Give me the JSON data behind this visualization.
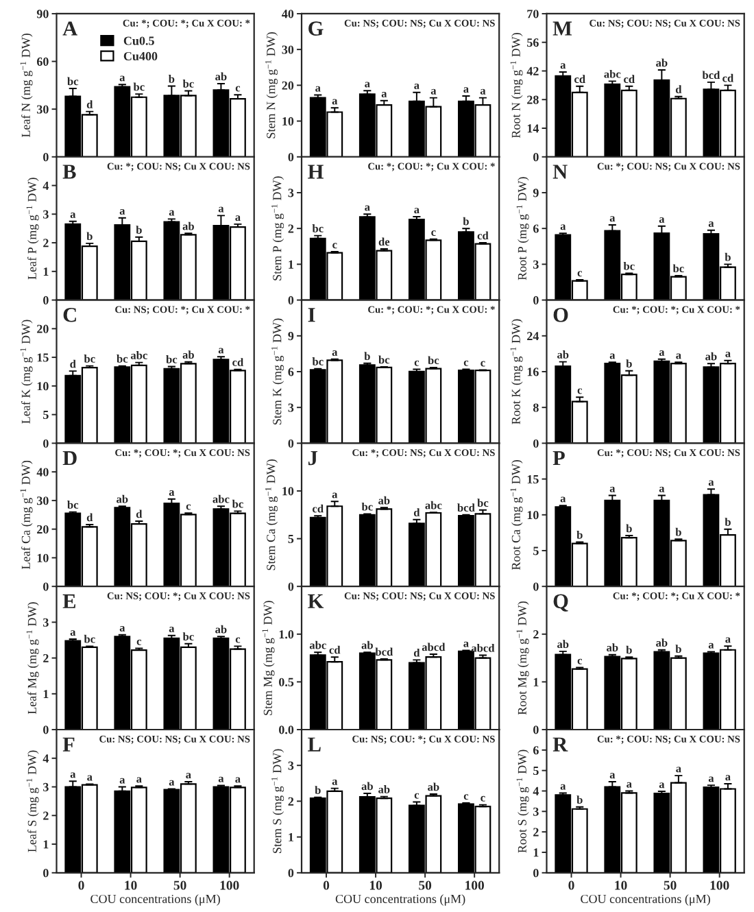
{
  "chart_data": [
    {
      "type": "bar",
      "title": "A",
      "subtitle": "Cu: *; COU: *; Cu X COU: *",
      "ylabel": "Leaf N (mg g$^{−1}$ DW)",
      "categories": [
        "0",
        "10",
        "50",
        "100"
      ],
      "ylim": [
        0,
        90
      ],
      "yticks": [
        0,
        30,
        60,
        90
      ],
      "tick_labels": "y",
      "legend": "top left",
      "series": [
        {
          "name": "Cu0.5",
          "color": "#000000",
          "values": [
            38,
            44,
            38.5,
            42
          ],
          "errors": [
            5,
            1.5,
            6,
            4
          ],
          "value_labels": [
            "bc",
            "a",
            "b",
            "ab"
          ]
        },
        {
          "name": "Cu400",
          "color": "#ffffff",
          "values": [
            26.5,
            37.5,
            38.5,
            36.5
          ],
          "errors": [
            2,
            2,
            3,
            2.5
          ],
          "value_labels": [
            "d",
            "bc",
            "bc",
            "c"
          ]
        }
      ]
    },
    {
      "type": "bar",
      "title": "B",
      "subtitle": "Cu: *; COU: NS; Cu X COU: NS",
      "ylabel": "Leaf P (mg g$^{−1}$ DW)",
      "categories": [
        "0",
        "10",
        "50",
        "100"
      ],
      "ylim": [
        0,
        5
      ],
      "yticks": [
        0,
        1,
        2,
        3,
        4
      ],
      "tick_labels": "y",
      "series": [
        {
          "color": "#000000",
          "values": [
            2.65,
            2.62,
            2.73,
            2.6
          ],
          "errors": [
            0.1,
            0.25,
            0.1,
            0.35
          ],
          "value_labels": [
            "a",
            "a",
            "a",
            "a"
          ]
        },
        {
          "color": "#ffffff",
          "values": [
            1.88,
            2.05,
            2.28,
            2.55
          ],
          "errors": [
            0.1,
            0.15,
            0.05,
            0.1
          ],
          "value_labels": [
            "b",
            "b",
            "ab",
            "a"
          ]
        }
      ]
    },
    {
      "type": "bar",
      "title": "C",
      "subtitle": "Cu: NS; COU: *; Cu X COU: *",
      "ylabel": "Leaf K (mg g$^{−1}$ DW)",
      "categories": [
        "0",
        "10",
        "50",
        "100"
      ],
      "ylim": [
        0,
        25
      ],
      "yticks": [
        0,
        5,
        10,
        15,
        20
      ],
      "tick_labels": "y",
      "series": [
        {
          "color": "#000000",
          "values": [
            11.8,
            13.3,
            13.0,
            14.6
          ],
          "errors": [
            0.8,
            0.2,
            0.4,
            0.5
          ],
          "value_labels": [
            "d",
            "bc",
            "bc",
            "a"
          ]
        },
        {
          "color": "#ffffff",
          "values": [
            13.2,
            13.6,
            13.9,
            12.7
          ],
          "errors": [
            0.3,
            0.5,
            0.3,
            0.2
          ],
          "value_labels": [
            "bc",
            "abc",
            "ab",
            "cd"
          ]
        }
      ]
    },
    {
      "type": "bar",
      "title": "D",
      "subtitle": "Cu: *; COU: *; Cu X COU: NS",
      "ylabel": "Leaf Ca (mg g$^{−1}$ DW)",
      "categories": [
        "0",
        "10",
        "50",
        "100"
      ],
      "ylim": [
        0,
        50
      ],
      "yticks": [
        0,
        10,
        20,
        30,
        40
      ],
      "tick_labels": "y",
      "series": [
        {
          "color": "#000000",
          "values": [
            25.5,
            27.5,
            29,
            27
          ],
          "errors": [
            0.5,
            0.5,
            1.5,
            1
          ],
          "value_labels": [
            "bc",
            "ab",
            "a",
            "abc"
          ]
        },
        {
          "color": "#ffffff",
          "values": [
            20.8,
            21.8,
            25.1,
            25.5
          ],
          "errors": [
            0.8,
            1,
            0.5,
            0.8
          ],
          "value_labels": [
            "d",
            "d",
            "c",
            "bc"
          ]
        }
      ]
    },
    {
      "type": "bar",
      "title": "E",
      "subtitle": "Cu: NS; COU: *; Cu X COU: NS",
      "ylabel": "Leaf Mg (mg g$^{−1}$ DW)",
      "categories": [
        "0",
        "10",
        "50",
        "100"
      ],
      "ylim": [
        0,
        4
      ],
      "yticks": [
        0,
        1,
        2,
        3
      ],
      "tick_labels": "y",
      "series": [
        {
          "color": "#000000",
          "values": [
            2.48,
            2.6,
            2.55,
            2.55
          ],
          "errors": [
            0.05,
            0.05,
            0.08,
            0.05
          ],
          "value_labels": [
            "a",
            "a",
            "a",
            "ab"
          ]
        },
        {
          "color": "#ffffff",
          "values": [
            2.3,
            2.22,
            2.3,
            2.25
          ],
          "errors": [
            0.03,
            0.05,
            0.1,
            0.08
          ],
          "value_labels": [
            "bc",
            "c",
            "bc",
            "c"
          ]
        }
      ]
    },
    {
      "type": "bar",
      "title": "F",
      "subtitle": "Cu: NS; COU: NS; Cu X COU: NS",
      "ylabel": "Leaf S (mg g$^{−1}$ DW)",
      "xlabel": "COU concentrations (μM)",
      "categories": [
        "0",
        "10",
        "50",
        "100"
      ],
      "ylim": [
        0,
        5
      ],
      "yticks": [
        0,
        1,
        2,
        3,
        4
      ],
      "series": [
        {
          "color": "#000000",
          "values": [
            3.0,
            2.85,
            2.9,
            3.0
          ],
          "errors": [
            0.2,
            0.15,
            0.03,
            0.05
          ],
          "value_labels": [
            "a",
            "a",
            "a",
            "a"
          ]
        },
        {
          "color": "#ffffff",
          "values": [
            3.07,
            2.98,
            3.1,
            2.98
          ],
          "errors": [
            0.03,
            0.05,
            0.08,
            0.05
          ],
          "value_labels": [
            "a",
            "a",
            "a",
            "a"
          ]
        }
      ]
    },
    {
      "type": "bar",
      "title": "G",
      "subtitle": "Cu: NS; COU: NS; Cu X COU: NS",
      "ylabel": "Stem N (mg g$^{−1}$ DW)",
      "categories": [
        "0",
        "10",
        "50",
        "100"
      ],
      "ylim": [
        0,
        40
      ],
      "yticks": [
        0,
        10,
        20,
        30,
        40
      ],
      "tick_labels": "y",
      "series": [
        {
          "color": "#000000",
          "values": [
            16.5,
            17.5,
            15.5,
            15.5
          ],
          "errors": [
            0.8,
            1,
            2.5,
            1.5
          ],
          "value_labels": [
            "a",
            "a",
            "a",
            "a"
          ]
        },
        {
          "color": "#ffffff",
          "values": [
            12.5,
            14.5,
            14,
            14.5
          ],
          "errors": [
            1.2,
            1.2,
            2.5,
            2
          ],
          "value_labels": [
            "a",
            "a",
            "a",
            "a"
          ]
        }
      ]
    },
    {
      "type": "bar",
      "title": "H",
      "subtitle": "Cu: *; COU: *; Cu X COU: *",
      "ylabel": "Stem P (mg g$^{−1}$ DW)",
      "categories": [
        "0",
        "10",
        "50",
        "100"
      ],
      "ylim": [
        0,
        4
      ],
      "yticks": [
        0,
        1,
        2,
        3
      ],
      "tick_labels": "y",
      "series": [
        {
          "color": "#000000",
          "values": [
            1.72,
            2.32,
            2.25,
            1.9
          ],
          "errors": [
            0.08,
            0.08,
            0.08,
            0.1
          ],
          "value_labels": [
            "bc",
            "a",
            "a",
            "b"
          ]
        },
        {
          "color": "#ffffff",
          "values": [
            1.32,
            1.38,
            1.67,
            1.57
          ],
          "errors": [
            0.03,
            0.05,
            0.03,
            0.03
          ],
          "value_labels": [
            "c",
            "de",
            "c",
            "cd"
          ]
        }
      ]
    },
    {
      "type": "bar",
      "title": "I",
      "subtitle": "Cu: *; COU: *; Cu X COU: *",
      "ylabel": "Stem K (mg g$^{−1}$ DW)",
      "categories": [
        "0",
        "10",
        "50",
        "100"
      ],
      "ylim": [
        0,
        12
      ],
      "yticks": [
        0,
        3,
        6,
        9
      ],
      "tick_labels": "y",
      "series": [
        {
          "color": "#000000",
          "values": [
            6.15,
            6.55,
            6.0,
            6.1
          ],
          "errors": [
            0.1,
            0.15,
            0.2,
            0.1
          ],
          "value_labels": [
            "bc",
            "b",
            "c",
            "c"
          ]
        },
        {
          "color": "#ffffff",
          "values": [
            6.95,
            6.35,
            6.25,
            6.1
          ],
          "errors": [
            0.1,
            0.05,
            0.1,
            0.05
          ],
          "value_labels": [
            "a",
            "bc",
            "bc",
            "c"
          ]
        }
      ]
    },
    {
      "type": "bar",
      "title": "J",
      "subtitle": "Cu: *; COU: NS; Cu X COU: NS",
      "ylabel": "Stem Ca (mg g$^{−1}$ DW)",
      "categories": [
        "0",
        "10",
        "50",
        "100"
      ],
      "ylim": [
        0,
        15
      ],
      "yticks": [
        0,
        5,
        10
      ],
      "tick_labels": "y",
      "series": [
        {
          "color": "#000000",
          "values": [
            7.2,
            7.5,
            6.6,
            7.4
          ],
          "errors": [
            0.2,
            0.1,
            0.4,
            0.1
          ],
          "value_labels": [
            "cd",
            "bc",
            "d",
            "bcd"
          ]
        },
        {
          "color": "#ffffff",
          "values": [
            8.4,
            8.1,
            7.7,
            7.6
          ],
          "errors": [
            0.5,
            0.15,
            0.05,
            0.4
          ],
          "value_labels": [
            "a",
            "ab",
            "abc",
            "bc"
          ]
        }
      ]
    },
    {
      "type": "bar",
      "title": "K",
      "subtitle": "Cu: NS; COU: NS; Cu X COU: NS",
      "ylabel": "Stem Mg (mg g$^{−1}$ DW)",
      "categories": [
        "0",
        "10",
        "50",
        "100"
      ],
      "ylim": [
        0,
        1.5
      ],
      "yticks": [
        {
          "value": 0,
          "label": "0.0"
        },
        {
          "value": 0.5,
          "label": "0.5"
        },
        {
          "value": 1,
          "label": "1.0"
        }
      ],
      "tick_labels": "y",
      "series": [
        {
          "color": "#000000",
          "values": [
            0.78,
            0.8,
            0.7,
            0.82
          ],
          "errors": [
            0.03,
            0.01,
            0.03,
            0.01
          ],
          "value_labels": [
            "abc",
            "ab",
            "d",
            "a"
          ]
        },
        {
          "color": "#ffffff",
          "values": [
            0.71,
            0.73,
            0.76,
            0.75
          ],
          "errors": [
            0.05,
            0.01,
            0.03,
            0.03
          ],
          "value_labels": [
            "cd",
            "bcd",
            "abcd",
            "abcd"
          ]
        }
      ]
    },
    {
      "type": "bar",
      "title": "L",
      "subtitle": "Cu: NS; COU: *; Cu X COU: NS",
      "ylabel": "Stem S (mg g$^{−1}$ DW)",
      "xlabel": "COU concentrations (μM)",
      "categories": [
        "0",
        "10",
        "50",
        "100"
      ],
      "ylim": [
        0,
        4
      ],
      "yticks": [
        0,
        1,
        2,
        3
      ],
      "series": [
        {
          "color": "#000000",
          "values": [
            2.08,
            2.12,
            1.88,
            1.92
          ],
          "errors": [
            0.03,
            0.1,
            0.1,
            0.03
          ],
          "value_labels": [
            "b",
            "ab",
            "c",
            "c"
          ]
        },
        {
          "color": "#ffffff",
          "values": [
            2.28,
            2.08,
            2.15,
            1.85
          ],
          "errors": [
            0.08,
            0.05,
            0.05,
            0.05
          ],
          "value_labels": [
            "a",
            "ab",
            "ab",
            "c"
          ]
        }
      ]
    },
    {
      "type": "bar",
      "title": "M",
      "subtitle": "Cu: NS; COU: NS; Cu X COU: NS",
      "ylabel": "Root N (mg g$^{−1}$ DW)",
      "categories": [
        "0",
        "10",
        "50",
        "100"
      ],
      "ylim": [
        0,
        70
      ],
      "yticks": [
        0,
        14,
        28,
        42,
        56,
        70
      ],
      "tick_labels": "y",
      "series": [
        {
          "color": "#000000",
          "values": [
            39.5,
            35.5,
            37.5,
            33
          ],
          "errors": [
            2,
            1.5,
            5,
            3.5
          ],
          "value_labels": [
            "a",
            "abc",
            "ab",
            "bcd"
          ]
        },
        {
          "color": "#ffffff",
          "values": [
            31.5,
            32.5,
            28.5,
            32.5
          ],
          "errors": [
            3,
            2,
            1,
            2.5
          ],
          "value_labels": [
            "cd",
            "cd",
            "d",
            "cd"
          ]
        }
      ]
    },
    {
      "type": "bar",
      "title": "N",
      "subtitle": "Cu: *; COU: NS; Cu X COU: NS",
      "ylabel": "Root P (mg g$^{−1}$ DW)",
      "categories": [
        "0",
        "10",
        "50",
        "100"
      ],
      "ylim": [
        0,
        12
      ],
      "yticks": [
        0,
        3,
        6,
        9
      ],
      "tick_labels": "y",
      "series": [
        {
          "color": "#000000",
          "values": [
            5.45,
            5.8,
            5.6,
            5.55
          ],
          "errors": [
            0.15,
            0.5,
            0.6,
            0.3
          ],
          "value_labels": [
            "a",
            "a",
            "a",
            "a"
          ]
        },
        {
          "color": "#ffffff",
          "values": [
            1.6,
            2.15,
            1.95,
            2.75
          ],
          "errors": [
            0.1,
            0.1,
            0.1,
            0.25
          ],
          "value_labels": [
            "c",
            "bc",
            "bc",
            "b"
          ]
        }
      ]
    },
    {
      "type": "bar",
      "title": "O",
      "subtitle": "Cu: *; COU: *; Cu X COU: *",
      "ylabel": "Root K (mg g$^{−1}$ DW)",
      "categories": [
        "0",
        "10",
        "50",
        "100"
      ],
      "ylim": [
        0,
        32
      ],
      "yticks": [
        0,
        8,
        16,
        24
      ],
      "tick_labels": "y",
      "series": [
        {
          "color": "#000000",
          "values": [
            17.2,
            17.8,
            18.3,
            17.0
          ],
          "errors": [
            1,
            0.3,
            0.5,
            0.8
          ],
          "value_labels": [
            "ab",
            "a",
            "a",
            "ab"
          ]
        },
        {
          "color": "#ffffff",
          "values": [
            9.3,
            15.2,
            17.8,
            17.8
          ],
          "errors": [
            1,
            1,
            0.3,
            0.7
          ],
          "value_labels": [
            "c",
            "b",
            "a",
            "a"
          ]
        }
      ]
    },
    {
      "type": "bar",
      "title": "P",
      "subtitle": "Cu: *; COU: NS; Cu X COU: NS",
      "ylabel": "Root Ca (mg g$^{−1}$ DW)",
      "categories": [
        "0",
        "10",
        "50",
        "100"
      ],
      "ylim": [
        0,
        20
      ],
      "yticks": [
        0,
        5,
        10,
        15
      ],
      "tick_labels": "y",
      "series": [
        {
          "color": "#000000",
          "values": [
            11.1,
            12,
            12,
            12.8
          ],
          "errors": [
            0.2,
            0.7,
            0.7,
            0.8
          ],
          "value_labels": [
            "a",
            "a",
            "a",
            "a"
          ]
        },
        {
          "color": "#ffffff",
          "values": [
            6.0,
            6.8,
            6.4,
            7.2
          ],
          "errors": [
            0.2,
            0.3,
            0.2,
            0.8
          ],
          "value_labels": [
            "b",
            "b",
            "b",
            "b"
          ]
        }
      ]
    },
    {
      "type": "bar",
      "title": "Q",
      "subtitle": "Cu: *; COU: *; Cu X COU: *",
      "ylabel": "Root Mg (mg g$^{−1}$ DW)",
      "categories": [
        "0",
        "10",
        "50",
        "100"
      ],
      "ylim": [
        0,
        3
      ],
      "yticks": [
        0,
        1,
        2
      ],
      "tick_labels": "y",
      "series": [
        {
          "color": "#000000",
          "values": [
            1.57,
            1.53,
            1.63,
            1.6
          ],
          "errors": [
            0.07,
            0.04,
            0.04,
            0.03
          ],
          "value_labels": [
            "ab",
            "ab",
            "ab",
            "a"
          ]
        },
        {
          "color": "#ffffff",
          "values": [
            1.27,
            1.49,
            1.5,
            1.67
          ],
          "errors": [
            0.03,
            0.03,
            0.04,
            0.08
          ],
          "value_labels": [
            "c",
            "b",
            "b",
            "a"
          ]
        }
      ]
    },
    {
      "type": "bar",
      "title": "R",
      "subtitle": "Cu: *; COU: NS; Cu X COU: NS",
      "ylabel": "Root S (mg g$^{−1}$ DW)",
      "xlabel": "COU concentrations (μM)",
      "categories": [
        "0",
        "10",
        "50",
        "100"
      ],
      "ylim": [
        0,
        7
      ],
      "yticks": [
        0,
        1,
        2,
        3,
        4,
        5,
        6
      ],
      "series": [
        {
          "color": "#000000",
          "values": [
            3.8,
            4.2,
            3.88,
            4.18
          ],
          "errors": [
            0.1,
            0.25,
            0.1,
            0.1
          ],
          "value_labels": [
            "a",
            "a",
            "a",
            "a"
          ]
        },
        {
          "color": "#ffffff",
          "values": [
            3.12,
            3.9,
            4.4,
            4.1
          ],
          "errors": [
            0.1,
            0.1,
            0.35,
            0.25
          ],
          "value_labels": [
            "b",
            "a",
            "a",
            "a"
          ]
        }
      ]
    }
  ]
}
